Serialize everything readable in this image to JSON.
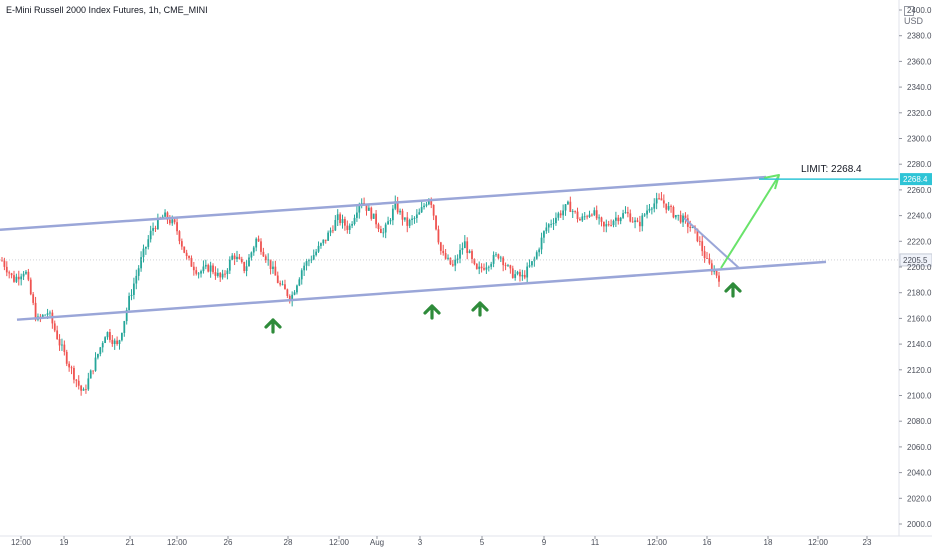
{
  "header": {
    "title": "E-Mini Russell 2000 Index Futures, 1h, CME_MINI",
    "currency": "USD"
  },
  "annotations": {
    "limit_label": "LIMIT: 2268.4",
    "limit_price_tag": "2268.4",
    "current_price_tag": "2205.5"
  },
  "colors": {
    "up_candle": "#26a69a",
    "down_candle": "#ef5350",
    "channel_line": "#9aa6d8",
    "target_arrow": "#69e36a",
    "limit_line": "#2ec4d6",
    "support_arrow": "#2e8b3a"
  },
  "chart_data": {
    "type": "candlestick",
    "symbol": "E-Mini Russell 2000 Index Futures",
    "interval": "1h",
    "exchange": "CME_MINI",
    "ylim": [
      2000,
      2400
    ],
    "y_ticks": [
      "2400.0",
      "2380.0",
      "2360.0",
      "2340.0",
      "2320.0",
      "2300.0",
      "2280.0",
      "2260.0",
      "2240.0",
      "2220.0",
      "2200.0",
      "2180.0",
      "2160.0",
      "2140.0",
      "2120.0",
      "2100.0",
      "2080.0",
      "2060.0",
      "2040.0",
      "2020.0",
      "2000.0"
    ],
    "x_tick_labels": [
      "12:00",
      "19",
      "21",
      "12:00",
      "26",
      "28",
      "12:00",
      "Aug",
      "3",
      "5",
      "9",
      "11",
      "12:00",
      "16",
      "18",
      "12:00",
      "23"
    ],
    "current_price": 2205.5,
    "limit_price": 2268.4,
    "trend_channel": {
      "upper": [
        2229,
        2270
      ],
      "lower": [
        2159,
        2204
      ]
    },
    "price_path": [
      2205,
      2190,
      2198,
      2158,
      2165,
      2140,
      2120,
      2101,
      2125,
      2150,
      2138,
      2175,
      2205,
      2230,
      2240,
      2232,
      2206,
      2196,
      2200,
      2190,
      2210,
      2198,
      2222,
      2205,
      2186,
      2176,
      2200,
      2210,
      2222,
      2238,
      2230,
      2253,
      2240,
      2226,
      2248,
      2233,
      2240,
      2256,
      2210,
      2200,
      2219,
      2196,
      2203,
      2210,
      2195,
      2192,
      2205,
      2230,
      2240,
      2248,
      2236,
      2244,
      2230,
      2238,
      2242,
      2232,
      2248,
      2252,
      2242,
      2236,
      2226,
      2203,
      2192
    ],
    "support_points": 4
  }
}
